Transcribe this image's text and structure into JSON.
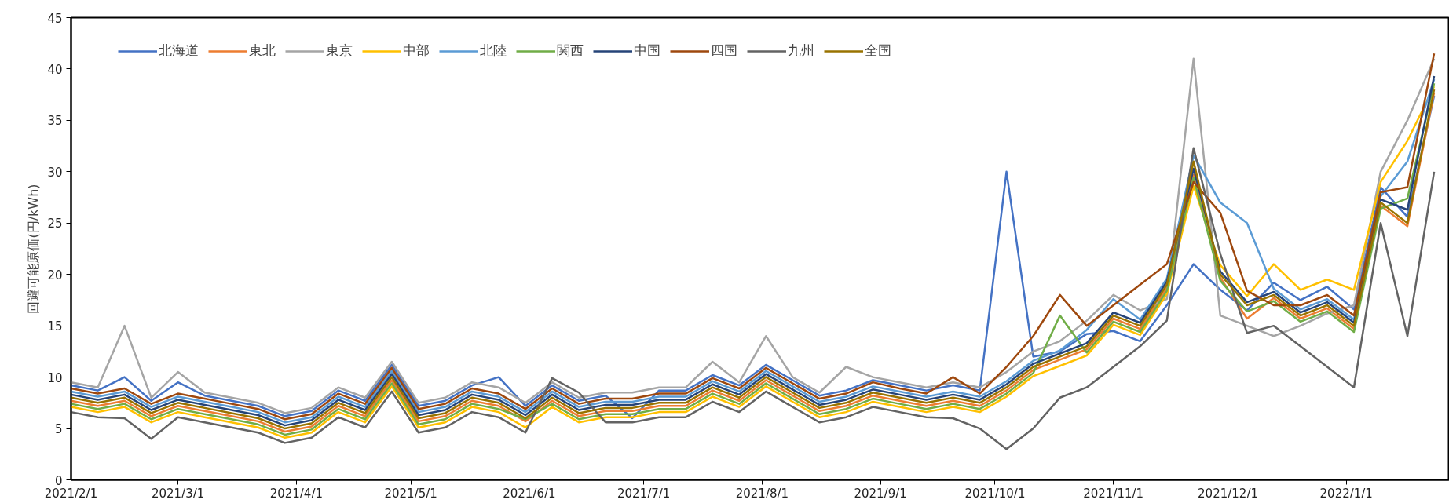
{
  "chart_data": {
    "type": "line",
    "ylabel": "回避可能原価(円/kWh)",
    "legend": "top left",
    "grid": false,
    "line_style": "solid",
    "x": [
      "2021-02-01",
      "2021-02-08",
      "2021-02-15",
      "2021-02-22",
      "2021-03-01",
      "2021-03-08",
      "2021-03-15",
      "2021-03-22",
      "2021-03-29",
      "2021-04-05",
      "2021-04-12",
      "2021-04-19",
      "2021-04-26",
      "2021-05-03",
      "2021-05-10",
      "2021-05-17",
      "2021-05-24",
      "2021-05-31",
      "2021-06-07",
      "2021-06-14",
      "2021-06-21",
      "2021-06-28",
      "2021-07-05",
      "2021-07-12",
      "2021-07-19",
      "2021-07-26",
      "2021-08-02",
      "2021-08-09",
      "2021-08-16",
      "2021-08-23",
      "2021-08-30",
      "2021-09-06",
      "2021-09-13",
      "2021-09-20",
      "2021-09-27",
      "2021-10-04",
      "2021-10-11",
      "2021-10-18",
      "2021-10-25",
      "2021-11-01",
      "2021-11-08",
      "2021-11-15",
      "2021-11-22",
      "2021-11-29",
      "2021-12-06",
      "2021-12-13",
      "2021-12-20",
      "2021-12-27",
      "2022-01-03",
      "2022-01-10",
      "2022-01-17",
      "2022-01-24"
    ],
    "xlim": [
      "2021-02-01",
      "2022-01-28"
    ],
    "xticks": [
      {
        "value": "2021-02-01",
        "label": "2021/2/1"
      },
      {
        "value": "2021-03-01",
        "label": "2021/3/1"
      },
      {
        "value": "2021-04-01",
        "label": "2021/4/1"
      },
      {
        "value": "2021-05-01",
        "label": "2021/5/1"
      },
      {
        "value": "2021-06-01",
        "label": "2021/6/1"
      },
      {
        "value": "2021-07-01",
        "label": "2021/7/1"
      },
      {
        "value": "2021-08-01",
        "label": "2021/8/1"
      },
      {
        "value": "2021-09-01",
        "label": "2021/9/1"
      },
      {
        "value": "2021-10-01",
        "label": "2021/10/1"
      },
      {
        "value": "2021-11-01",
        "label": "2021/11/1"
      },
      {
        "value": "2021-12-01",
        "label": "2021/12/1"
      },
      {
        "value": "2022-01-01",
        "label": "2022/1/1"
      }
    ],
    "ylim": [
      0,
      45
    ],
    "yticks": [
      0,
      5,
      10,
      15,
      20,
      25,
      30,
      35,
      40,
      45
    ],
    "series": [
      {
        "name": "北海道",
        "color": "#4472c4",
        "values": [
          9.2,
          8.7,
          10,
          7.7,
          9.5,
          8.2,
          7.7,
          7.2,
          6.2,
          6.7,
          8.7,
          7.7,
          11.2,
          7.2,
          7.7,
          9.2,
          10,
          7.2,
          9.2,
          7.7,
          8.2,
          6,
          8.7,
          8.7,
          10.2,
          9.2,
          11.2,
          9.7,
          8.2,
          8.7,
          9.7,
          9.2,
          8.7,
          9.2,
          8.7,
          30,
          12,
          12.5,
          14.2,
          14.5,
          13.5,
          17,
          21,
          18.5,
          16.5,
          19.2,
          17.5,
          18.8,
          16.6,
          28.5,
          25.6,
          37.4
        ]
      },
      {
        "name": "東北",
        "color": "#ed7d31",
        "values": [
          7.7,
          7.2,
          7.7,
          6.2,
          7.2,
          6.7,
          6.2,
          5.7,
          4.7,
          5.2,
          7.2,
          6.2,
          9.7,
          5.7,
          6.2,
          7.7,
          7.2,
          5.7,
          7.7,
          6.2,
          6.7,
          6.7,
          7.2,
          7.2,
          8.7,
          7.7,
          9.7,
          8.2,
          6.7,
          7.2,
          8.2,
          7.7,
          7.2,
          7.7,
          7.2,
          8.7,
          10.7,
          11.7,
          12.7,
          15.7,
          14.7,
          18.7,
          29.7,
          19.7,
          15.7,
          17.7,
          15.7,
          16.7,
          14.7,
          26.7,
          24.7,
          37.7
        ]
      },
      {
        "name": "東京",
        "color": "#a5a5a5",
        "values": [
          9.5,
          9,
          15,
          8,
          10.5,
          8.5,
          8,
          7.5,
          6.5,
          7,
          9,
          8,
          11.5,
          7.5,
          8,
          9.5,
          9,
          7.5,
          9.5,
          8,
          8.5,
          8.5,
          9,
          9,
          11.5,
          9.5,
          14,
          10,
          8.5,
          11,
          10,
          9.5,
          9,
          9.5,
          9,
          10.5,
          12.5,
          13.5,
          15.5,
          18,
          16.5,
          17.6,
          41,
          16,
          15,
          14,
          15,
          16.2,
          17,
          30,
          35,
          41
        ]
      },
      {
        "name": "中部",
        "color": "#ffc000",
        "values": [
          7.1,
          6.6,
          7.1,
          5.6,
          6.6,
          6.1,
          5.6,
          5.1,
          4.1,
          4.6,
          6.6,
          5.6,
          9.1,
          5.1,
          5.6,
          7.1,
          6.6,
          5.1,
          7.1,
          5.6,
          6.1,
          6.1,
          6.6,
          6.6,
          8.1,
          7.1,
          9.1,
          7.6,
          6.1,
          6.6,
          7.6,
          7.1,
          6.6,
          7.1,
          6.6,
          8.1,
          10.1,
          11.1,
          12.1,
          15.1,
          14.1,
          18.1,
          28.6,
          20.9,
          17.9,
          21,
          18.5,
          19.5,
          18.5,
          29,
          33,
          38.3
        ]
      },
      {
        "name": "北陸",
        "color": "#5b9bd5",
        "values": [
          8.6,
          8.1,
          8.6,
          7.1,
          8.1,
          7.6,
          7.1,
          6.6,
          5.6,
          6.1,
          8.1,
          7.1,
          10.6,
          6.6,
          7.1,
          8.6,
          8.1,
          6.6,
          8.6,
          7.1,
          7.6,
          7.6,
          8.1,
          8.1,
          9.6,
          8.6,
          10.6,
          9.1,
          7.6,
          8.1,
          9.1,
          8.6,
          8.1,
          8.6,
          8.1,
          9.6,
          11.6,
          12.6,
          14.6,
          17.6,
          15.6,
          19.6,
          31.6,
          27,
          25,
          18.6,
          16.6,
          17.6,
          15.6,
          27.6,
          31,
          39
        ]
      },
      {
        "name": "関西",
        "color": "#70ad47",
        "values": [
          7.4,
          6.9,
          7.4,
          5.9,
          6.9,
          6.4,
          5.9,
          5.4,
          4.4,
          4.9,
          6.9,
          5.9,
          9.4,
          5.4,
          5.9,
          7.4,
          6.9,
          5.9,
          7.4,
          5.9,
          6.4,
          6.4,
          6.9,
          6.9,
          8.4,
          7.4,
          9.4,
          7.9,
          6.4,
          6.9,
          7.9,
          7.4,
          6.9,
          7.4,
          6.9,
          8.4,
          10.4,
          16,
          12.4,
          15.4,
          14.4,
          18.4,
          29.4,
          19.4,
          16.4,
          17.4,
          15.4,
          16.4,
          14.4,
          26.4,
          27.4,
          38.6
        ]
      },
      {
        "name": "中国",
        "color": "#264478",
        "values": [
          8.3,
          7.8,
          8.3,
          6.8,
          7.8,
          7.3,
          6.8,
          6.3,
          5.3,
          5.8,
          7.8,
          6.8,
          10.3,
          6.3,
          6.8,
          8.3,
          7.8,
          6.3,
          8.3,
          6.8,
          7.3,
          7.3,
          7.8,
          7.8,
          9.3,
          8.3,
          10.3,
          8.8,
          7.3,
          7.8,
          8.8,
          8.3,
          7.8,
          8.3,
          7.8,
          9.3,
          11.3,
          12.3,
          13.3,
          16.3,
          15.3,
          19.3,
          30.3,
          20.3,
          17.3,
          18.3,
          16.3,
          17.3,
          15.3,
          27.3,
          26.3,
          39.3
        ]
      },
      {
        "name": "四国",
        "color": "#9e480e",
        "values": [
          8.9,
          8.4,
          8.9,
          7.4,
          8.4,
          7.9,
          7.4,
          6.9,
          5.9,
          6.4,
          8.4,
          7.4,
          10.9,
          6.9,
          7.4,
          8.9,
          8.4,
          6.9,
          8.9,
          7.4,
          7.9,
          7.9,
          8.4,
          8.4,
          9.9,
          8.9,
          10.9,
          9.4,
          7.9,
          8.4,
          9.5,
          8.9,
          8.4,
          10,
          8.4,
          11,
          14,
          18,
          15,
          17,
          19,
          21,
          29,
          26,
          18.4,
          17,
          17,
          18,
          16,
          28,
          28.5,
          41.5
        ]
      },
      {
        "name": "九州",
        "color": "#636363",
        "values": [
          6.6,
          6.1,
          6,
          4,
          6.1,
          5.6,
          5.1,
          4.6,
          3.6,
          4.1,
          6.1,
          5.1,
          8.6,
          4.6,
          5.1,
          6.6,
          6.1,
          4.6,
          9.9,
          8.5,
          5.6,
          5.6,
          6.1,
          6.1,
          7.6,
          6.6,
          8.6,
          7.1,
          5.6,
          6.1,
          7.1,
          6.6,
          6.1,
          6,
          5,
          3,
          5,
          8,
          9,
          11,
          13,
          15.5,
          32.3,
          22,
          14.3,
          15,
          13,
          11,
          9,
          25,
          14,
          30
        ]
      },
      {
        "name": "全国",
        "color": "#997300",
        "values": [
          8,
          7.5,
          8,
          6.5,
          7.5,
          7,
          6.5,
          6,
          5,
          5.5,
          7.5,
          6.5,
          10,
          6,
          6.5,
          8,
          7.5,
          6,
          8,
          6.5,
          7,
          7,
          7.5,
          7.5,
          9,
          8,
          10,
          8.5,
          7,
          7.5,
          8.5,
          8,
          7.5,
          8,
          7.5,
          9,
          11,
          12,
          13,
          16,
          15,
          19,
          31,
          20,
          17,
          18,
          16,
          17,
          15,
          27,
          25,
          38
        ]
      }
    ]
  }
}
